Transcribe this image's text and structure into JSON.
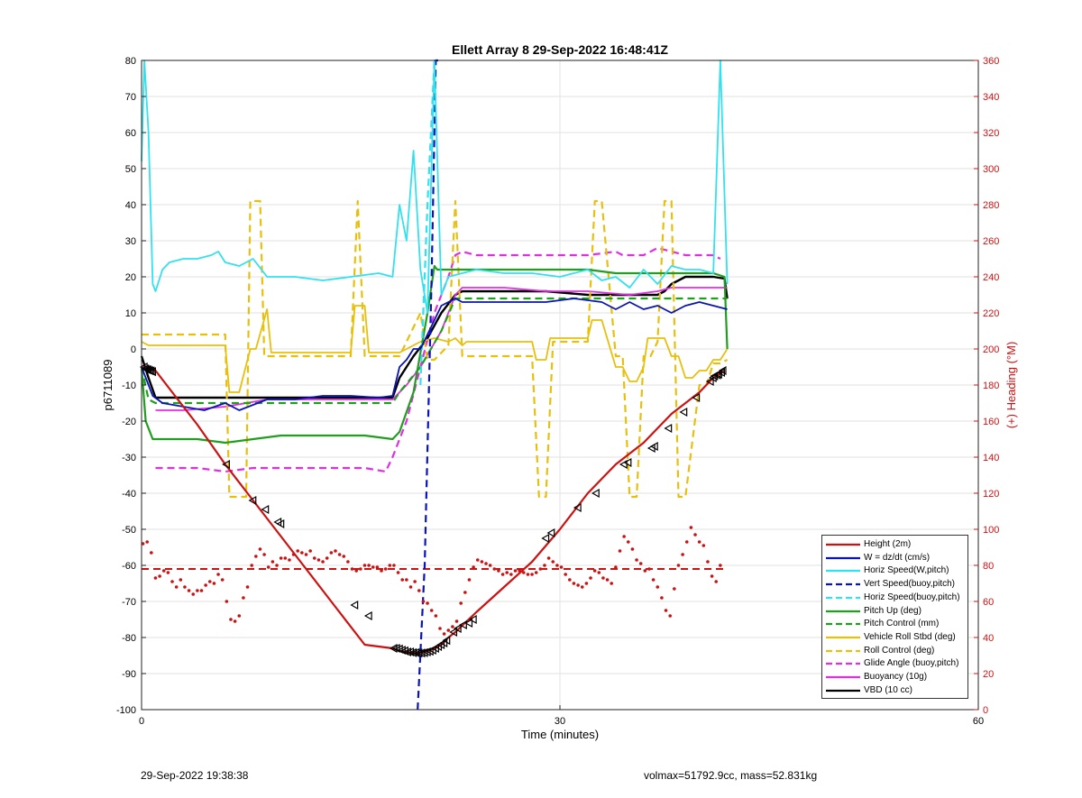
{
  "chart_data": {
    "type": "line",
    "title": "Ellett Array 8 29-Sep-2022 16:48:41Z",
    "xlabel": "Time (minutes)",
    "ylabel_left": "p6711089",
    "ylabel_right": "(+) Heading (°M)",
    "xlim": [
      0,
      60
    ],
    "ylim_left": [
      -100,
      80
    ],
    "ylim_right": [
      0,
      360
    ],
    "x_ticks": [
      0,
      30,
      60
    ],
    "y_ticks_left": [
      -100,
      -90,
      -80,
      -70,
      -60,
      -50,
      -40,
      -30,
      -20,
      -10,
      0,
      10,
      20,
      30,
      40,
      50,
      60,
      70,
      80
    ],
    "y_ticks_right": [
      0,
      20,
      40,
      60,
      80,
      100,
      120,
      140,
      160,
      180,
      200,
      220,
      240,
      260,
      280,
      300,
      320,
      340,
      360
    ],
    "grid": true,
    "legend_position": "bottom-right",
    "series": [
      {
        "name": "Height (2m)",
        "color": "#cc1111",
        "style": "solid",
        "width": 2.2,
        "x": [
          0.0,
          0.5,
          1.0,
          2.0,
          4.0,
          6.0,
          8.0,
          10.0,
          12.0,
          14.0,
          16.0,
          18.0,
          18.5,
          19.0,
          19.5,
          20.0,
          20.5,
          21.0,
          21.5,
          22.0,
          22.5,
          24.0,
          26.0,
          28.0,
          30.0,
          32.0,
          34.0,
          36.0,
          38.0,
          40.0,
          41.0,
          41.8
        ],
        "y": [
          -5,
          -5.5,
          -6,
          -11,
          -21,
          -32,
          -42,
          -52,
          -62,
          -72,
          -82,
          -83,
          -83.7,
          -84,
          -84.3,
          -84.2,
          -83.8,
          -83,
          -82,
          -80,
          -78.5,
          -73,
          -66,
          -59,
          -50,
          -40,
          -32,
          -26,
          -18,
          -12,
          -8,
          -6
        ]
      },
      {
        "name": "W = dz/dt (cm/s)",
        "color": "#0a14b4",
        "style": "solid",
        "width": 1.8,
        "x": [
          0.0,
          0.4,
          0.8,
          1.5,
          3.0,
          4.5,
          6.0,
          7.0,
          9.0,
          11.0,
          13.0,
          15.0,
          17.0,
          18.0,
          18.5,
          19.0,
          19.5,
          20.0,
          20.5,
          21.0,
          21.5,
          22.0,
          22.5,
          23.0,
          25.0,
          27.0,
          29.0,
          31.0,
          33.0,
          34.0,
          35.0,
          36.0,
          37.0,
          38.0,
          39.0,
          40.0,
          41.0,
          42.0
        ],
        "y": [
          -5,
          -9,
          -13,
          -15,
          -16,
          -17,
          -15,
          -17,
          -14,
          -14,
          -13,
          -13,
          -13.5,
          -13,
          -5,
          -3,
          0,
          0,
          4,
          8,
          12,
          13,
          14,
          13,
          13,
          13,
          13,
          14,
          13,
          11,
          13,
          11,
          12,
          10,
          12,
          13,
          12,
          11
        ]
      },
      {
        "name": "Horiz Speed(W,pitch)",
        "color": "#33e0ee",
        "style": "solid",
        "width": 1.8,
        "x": [
          0.0,
          0.2,
          0.5,
          0.8,
          1.0,
          1.5,
          2.0,
          3.0,
          4.0,
          5.0,
          5.5,
          6.0,
          7.0,
          8.0,
          9.0,
          11.0,
          13.0,
          15.0,
          17.0,
          18.0,
          18.5,
          19.0,
          19.5,
          20.0,
          20.5,
          21.0,
          21.5,
          22.0,
          23.0,
          24.0,
          26.0,
          28.0,
          30.0,
          32.0,
          33.0,
          34.0,
          35.0,
          36.0,
          37.0,
          38.0,
          39.0,
          40.0,
          41.0,
          41.5,
          42.0
        ],
        "y": [
          52,
          80,
          60,
          18,
          16,
          22,
          24,
          25,
          25,
          26,
          27,
          24,
          23,
          25,
          20,
          20,
          19,
          20,
          21,
          20,
          40,
          30,
          55,
          22,
          10,
          80,
          15,
          20,
          21,
          22,
          21,
          21,
          20,
          22,
          19,
          20,
          17,
          22,
          18,
          23,
          22,
          22,
          21,
          80,
          18
        ]
      },
      {
        "name": "Vert Speed(buoy,pitch)",
        "color": "#0a14b4",
        "style": "dash",
        "width": 2.2,
        "x": [
          19.8,
          20.3,
          20.8,
          21.1,
          21.3
        ],
        "y": [
          -100,
          -60,
          20,
          80,
          80
        ]
      },
      {
        "name": "Horiz Speed(buoy,pitch)",
        "color": "#33e0ee",
        "style": "dash",
        "width": 2.2,
        "x": [
          20.0,
          20.5,
          21.0
        ],
        "y": [
          -10,
          40,
          80
        ]
      },
      {
        "name": "Pitch Up (deg)",
        "color": "#1f9e1f",
        "style": "solid",
        "width": 2.2,
        "x": [
          0.0,
          0.3,
          0.8,
          1.5,
          4.0,
          6.0,
          8.0,
          10.0,
          12.0,
          14.0,
          16.0,
          18.0,
          18.5,
          19.5,
          20.5,
          21.0,
          21.2,
          22.0,
          24.0,
          26.0,
          28.0,
          30.0,
          32.0,
          34.0,
          36.0,
          38.0,
          40.0,
          41.0,
          41.8,
          42.0
        ],
        "y": [
          -5,
          -20,
          -25,
          -25,
          -25,
          -26,
          -25,
          -24,
          -24,
          -24,
          -24,
          -25,
          -23,
          -12,
          10,
          23,
          22,
          22,
          22,
          22,
          22,
          22,
          22,
          21,
          21,
          21,
          21,
          21,
          20,
          0
        ]
      },
      {
        "name": "Pitch Control (mm)",
        "color": "#1f9e1f",
        "style": "dash",
        "width": 2.2,
        "x": [
          0.0,
          0.5,
          1.0,
          4.0,
          8.0,
          12.0,
          16.0,
          18.0,
          18.5,
          20.0,
          21.5,
          22.5,
          23.0,
          26.0,
          30.0,
          35.0,
          40.0,
          42.0
        ],
        "y": [
          -5,
          -14,
          -15,
          -15,
          -15,
          -15,
          -15,
          -15,
          -12,
          -5,
          5,
          14,
          14,
          14,
          14,
          14,
          14,
          14
        ]
      },
      {
        "name": "Vehicle Roll Stbd (deg)",
        "color": "#e6c00f",
        "style": "solid",
        "width": 1.8,
        "x": [
          0.0,
          0.5,
          1.0,
          6.0,
          6.3,
          7.0,
          7.8,
          8.2,
          9.0,
          9.3,
          15.0,
          15.3,
          16.0,
          16.3,
          18.5,
          19.0,
          20.0,
          21.0,
          22.0,
          22.5,
          23.0,
          23.3,
          28.0,
          28.3,
          29.0,
          29.3,
          32.0,
          32.3,
          33.0,
          34.0,
          34.5,
          35.0,
          35.5,
          36.0,
          36.3,
          37.0,
          37.5,
          38.0,
          38.5,
          39.0,
          39.5,
          40.0,
          40.5,
          41.0,
          41.5,
          42.0
        ],
        "y": [
          2,
          1,
          1,
          1,
          -12,
          -12,
          0,
          0,
          11,
          -1,
          -1,
          12,
          12,
          -1,
          -1,
          0,
          2,
          3,
          2,
          3,
          1,
          2,
          2,
          -3,
          -3,
          3,
          3,
          8,
          8,
          -5,
          -5,
          -9,
          -9,
          -5,
          3,
          3,
          3,
          -2,
          -2,
          -8,
          -8,
          -6,
          -6,
          -3,
          -3,
          0
        ]
      },
      {
        "name": "Roll Control (deg)",
        "color": "#e6c00f",
        "style": "dash",
        "width": 2.2,
        "x": [
          0.0,
          0.5,
          1.0,
          6.0,
          6.3,
          7.5,
          7.8,
          8.5,
          8.8,
          9.5,
          15.0,
          15.5,
          16.0,
          18.5,
          20.0,
          20.5,
          21.0,
          22.0,
          22.5,
          23.0,
          23.5,
          28.0,
          28.5,
          29.0,
          29.5,
          32.0,
          32.5,
          33.0,
          34.0,
          34.5,
          35.0,
          35.5,
          36.0,
          36.5,
          37.0,
          37.5,
          38.0,
          38.5,
          39.0,
          40.0,
          40.5,
          41.0,
          41.5,
          42.0
        ],
        "y": [
          4,
          4,
          4,
          4,
          -41,
          -41,
          41,
          41,
          -2,
          -2,
          -2,
          41,
          -2,
          -2,
          10,
          -3,
          -3,
          1,
          41,
          -2,
          -2,
          -2,
          -41,
          -41,
          2,
          2,
          41,
          41,
          -2,
          -2,
          -41,
          -41,
          -2,
          -2,
          2,
          41,
          41,
          -41,
          -41,
          -10,
          -10,
          -4,
          -4,
          -3
        ]
      },
      {
        "name": "Glide Angle (buoy,pitch)",
        "color": "#e22ee2",
        "style": "dash",
        "width": 2.2,
        "x": [
          1.0,
          2.0,
          4.0,
          6.0,
          8.0,
          10.0,
          12.0,
          14.0,
          16.0,
          17.5,
          18.0,
          19.0,
          20.0,
          21.0,
          22.0,
          22.5,
          23.0,
          24.0,
          26.0,
          28.0,
          30.0,
          32.0,
          34.0,
          34.5,
          35.0,
          36.0,
          37.0,
          38.0,
          39.0,
          40.0,
          41.0,
          41.5
        ],
        "y": [
          -33,
          -33,
          -33,
          -34,
          -33,
          -33,
          -33,
          -33,
          -33,
          -34,
          -30,
          -20,
          -5,
          10,
          20,
          26,
          27,
          26,
          26,
          26,
          26,
          26,
          27,
          26,
          26,
          26,
          28,
          27,
          26,
          26,
          26,
          25
        ]
      },
      {
        "name": "Buoyancy (10g)",
        "color": "#e22ee2",
        "style": "solid",
        "width": 1.8,
        "x": [
          1.0,
          3.0,
          6.0,
          9.0,
          12.0,
          15.0,
          18.0,
          19.0,
          20.0,
          21.5,
          22.5,
          23.0,
          26.0,
          29.0,
          32.0,
          35.0,
          37.0,
          38.0,
          40.0,
          42.0
        ],
        "y": [
          -17,
          -17,
          -16,
          -14,
          -14,
          -14,
          -14,
          -10,
          -5,
          5,
          15,
          17,
          17,
          16,
          16,
          15,
          16,
          17,
          17,
          17
        ]
      },
      {
        "name": "VBD (10 cc)",
        "color": "#000000",
        "style": "solid",
        "width": 2.4,
        "x": [
          0.0,
          0.5,
          1.0,
          3.0,
          6.0,
          9.0,
          12.0,
          15.0,
          18.0,
          18.5,
          19.5,
          20.5,
          21.5,
          22.5,
          23.0,
          26.0,
          29.0,
          32.0,
          35.0,
          37.0,
          37.5,
          38.0,
          38.5,
          39.0,
          41.0,
          41.8,
          42.0
        ],
        "y": [
          -2,
          -8,
          -13.5,
          -13.5,
          -13.5,
          -13.5,
          -13.5,
          -13.5,
          -13.5,
          -8,
          -2,
          3,
          10,
          15,
          16,
          16,
          16,
          15,
          15,
          15,
          16,
          18,
          19,
          20,
          20,
          19.5,
          14
        ]
      }
    ],
    "markers": {
      "name": "Height (2m)",
      "color": "#000000",
      "shape": "triangle-left",
      "x": [
        0.2,
        0.3,
        0.4,
        0.5,
        0.6,
        0.7,
        0.8,
        6.1,
        8.0,
        8.9,
        9.8,
        10.0,
        15.3,
        16.3,
        18.1,
        18.3,
        18.5,
        18.7,
        18.9,
        19.1,
        19.3,
        19.5,
        19.7,
        19.9,
        20.1,
        20.3,
        20.5,
        20.7,
        20.9,
        21.1,
        21.3,
        21.5,
        21.7,
        21.9,
        22.4,
        22.7,
        23.1,
        23.5,
        23.8,
        29.0,
        29.4,
        31.3,
        32.6,
        34.6,
        34.9,
        36.6,
        36.8,
        37.8,
        38.9,
        39.8,
        40.8,
        41.0,
        41.1,
        41.3,
        41.4,
        41.6,
        41.7
      ],
      "y": [
        -5,
        -5.5,
        -5.7,
        -5.8,
        -6,
        -6.1,
        -6.3,
        -32,
        -42,
        -44.5,
        -48,
        -48.5,
        -71,
        -74,
        -83,
        -83,
        -83.2,
        -83.5,
        -83.7,
        -84,
        -84,
        -84.2,
        -84.2,
        -84.3,
        -84.3,
        -84.2,
        -84,
        -83.8,
        -83.5,
        -83,
        -82.5,
        -82,
        -81.5,
        -80.8,
        -78.5,
        -77.5,
        -76.5,
        -76,
        -75,
        -52.5,
        -51,
        -44,
        -40,
        -32,
        -31.5,
        -27.5,
        -27,
        -22,
        -17.5,
        -13.5,
        -9,
        -8,
        -7.5,
        -7.2,
        -7,
        -6.5,
        -6
      ]
    },
    "heading": {
      "color": "#cc1111",
      "mean": 78,
      "x": [
        0.1,
        0.4,
        0.7,
        1.0,
        1.3,
        1.6,
        1.9,
        2.2,
        2.5,
        2.8,
        3.1,
        3.4,
        3.7,
        4.0,
        4.3,
        4.6,
        4.9,
        5.2,
        5.5,
        5.8,
        6.1,
        6.4,
        6.7,
        7.0,
        7.3,
        7.6,
        7.9,
        8.2,
        8.5,
        8.8,
        9.1,
        9.4,
        9.7,
        10.0,
        10.3,
        10.6,
        10.9,
        11.2,
        11.5,
        11.8,
        12.1,
        12.4,
        12.7,
        13.0,
        13.3,
        13.6,
        13.9,
        14.2,
        14.5,
        14.8,
        15.1,
        15.4,
        15.7,
        16.0,
        16.3,
        16.6,
        16.9,
        17.2,
        17.5,
        17.8,
        18.1,
        18.4,
        18.7,
        19.0,
        19.3,
        19.6,
        19.9,
        20.2,
        20.5,
        20.8,
        21.1,
        21.4,
        21.7,
        22.0,
        22.3,
        22.6,
        22.9,
        23.2,
        23.5,
        23.8,
        24.1,
        24.4,
        24.7,
        25.0,
        25.3,
        25.6,
        25.9,
        26.2,
        26.5,
        26.8,
        27.1,
        27.4,
        27.7,
        28.0,
        28.3,
        28.6,
        28.9,
        29.2,
        29.5,
        29.8,
        30.1,
        30.4,
        30.7,
        31.0,
        31.3,
        31.6,
        31.9,
        32.2,
        32.5,
        32.8,
        33.1,
        33.4,
        33.7,
        34.0,
        34.3,
        34.6,
        34.9,
        35.2,
        35.5,
        35.8,
        36.1,
        36.4,
        36.7,
        37.0,
        37.3,
        37.6,
        37.9,
        38.2,
        38.5,
        38.8,
        39.1,
        39.4,
        39.7,
        40.0,
        40.3,
        40.6,
        40.9,
        41.2,
        41.5
      ],
      "y": [
        92,
        93,
        87,
        73,
        74,
        77,
        76,
        71,
        68,
        72,
        68,
        66,
        64,
        66,
        66,
        69,
        71,
        70,
        75,
        72,
        60,
        50,
        49,
        52,
        62,
        68,
        80,
        85,
        89,
        86,
        79,
        82,
        80,
        84,
        84,
        83,
        86,
        88,
        87,
        86,
        88,
        84,
        83,
        82,
        84,
        87,
        88,
        86,
        85,
        82,
        78,
        77,
        78,
        80,
        80,
        79,
        79,
        77,
        78,
        80,
        80,
        76,
        72,
        72,
        68,
        71,
        66,
        60,
        59,
        55,
        52,
        45,
        42,
        44,
        46,
        49,
        59,
        65,
        72,
        79,
        83,
        82,
        81,
        80,
        78,
        77,
        75,
        76,
        75,
        77,
        77,
        76,
        75,
        75,
        76,
        78,
        80,
        84,
        82,
        80,
        79,
        75,
        72,
        70,
        69,
        68,
        70,
        73,
        77,
        76,
        73,
        72,
        70,
        79,
        88,
        96,
        93,
        89,
        83,
        81,
        77,
        78,
        72,
        68,
        62,
        55,
        52,
        67,
        80,
        86,
        93,
        101,
        97,
        93,
        91,
        82,
        74,
        71,
        80
      ]
    }
  },
  "footer": {
    "left": "29-Sep-2022 19:38:38",
    "right": "volmax=51792.9cc, mass=52.831kg"
  }
}
